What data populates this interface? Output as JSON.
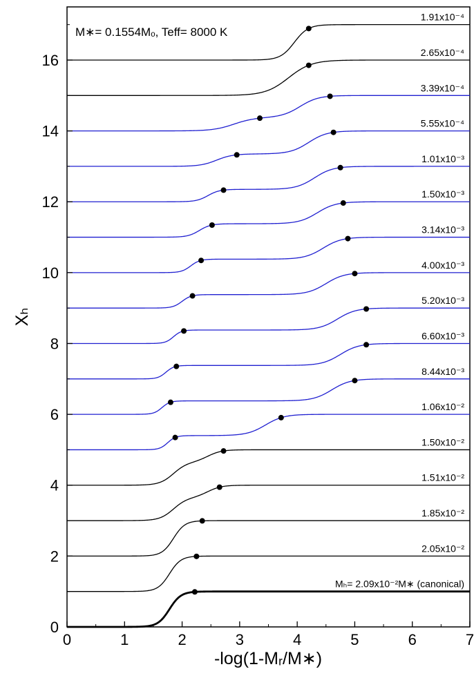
{
  "chart_data": {
    "type": "line",
    "xlabel": "-log(1-Mᵣ/M∗)",
    "ylabel": "Xₕ",
    "xlim": [
      0,
      7
    ],
    "ylim": [
      0,
      17.5
    ],
    "xticks": [
      0,
      1,
      2,
      3,
      4,
      5,
      6,
      7
    ],
    "yticks": [
      0,
      2,
      4,
      6,
      8,
      10,
      12,
      14,
      16
    ],
    "grid": false,
    "legend": "none",
    "annotation": "M∗= 0.1554Mₒ, Teff= 8000 K",
    "colors": {
      "black": "#000000",
      "blue": "#1f1fd0"
    },
    "series": [
      {
        "label": "1.91x10⁻⁴",
        "offset": 16,
        "color": "#000000",
        "steps": [
          {
            "x": 3.95,
            "h": 1.0,
            "w": 0.12
          }
        ],
        "markers": [
          4.2
        ]
      },
      {
        "label": "2.65x10⁻⁴",
        "offset": 15,
        "color": "#000000",
        "steps": [
          {
            "x": 3.85,
            "h": 1.0,
            "w": 0.2
          }
        ],
        "markers": [
          4.2
        ]
      },
      {
        "label": "3.39x10⁻⁴",
        "offset": 14,
        "color": "#1f1fd0",
        "steps": [
          {
            "x": 2.9,
            "h": 0.38,
            "w": 0.18
          },
          {
            "x": 4.05,
            "h": 0.62,
            "w": 0.16
          }
        ],
        "markers": [
          3.35,
          4.57
        ]
      },
      {
        "label": "5.55x10⁻⁴",
        "offset": 13,
        "color": "#1f1fd0",
        "steps": [
          {
            "x": 2.6,
            "h": 0.35,
            "w": 0.14
          },
          {
            "x": 4.2,
            "h": 0.65,
            "w": 0.16
          }
        ],
        "markers": [
          2.95,
          4.63
        ]
      },
      {
        "label": "1.01x10⁻³",
        "offset": 12,
        "color": "#1f1fd0",
        "steps": [
          {
            "x": 2.45,
            "h": 0.35,
            "w": 0.1
          },
          {
            "x": 4.3,
            "h": 0.65,
            "w": 0.16
          }
        ],
        "markers": [
          2.72,
          4.75
        ]
      },
      {
        "label": "1.50x10⁻³",
        "offset": 11,
        "color": "#1f1fd0",
        "steps": [
          {
            "x": 2.3,
            "h": 0.38,
            "w": 0.1
          },
          {
            "x": 4.35,
            "h": 0.62,
            "w": 0.16
          }
        ],
        "markers": [
          2.52,
          4.8
        ]
      },
      {
        "label": "3.14x10⁻³",
        "offset": 10,
        "color": "#1f1fd0",
        "steps": [
          {
            "x": 2.15,
            "h": 0.38,
            "w": 0.08
          },
          {
            "x": 4.45,
            "h": 0.62,
            "w": 0.16
          }
        ],
        "markers": [
          2.33,
          4.88
        ]
      },
      {
        "label": "4.00x10⁻³",
        "offset": 9,
        "color": "#1f1fd0",
        "steps": [
          {
            "x": 2.0,
            "h": 0.38,
            "w": 0.08
          },
          {
            "x": 4.5,
            "h": 0.62,
            "w": 0.16
          }
        ],
        "markers": [
          2.18,
          5.0
        ]
      },
      {
        "label": "5.20x10⁻³",
        "offset": 8,
        "color": "#1f1fd0",
        "steps": [
          {
            "x": 1.85,
            "h": 0.38,
            "w": 0.07
          },
          {
            "x": 4.7,
            "h": 0.62,
            "w": 0.16
          }
        ],
        "markers": [
          2.03,
          5.2
        ]
      },
      {
        "label": "6.60x10⁻³",
        "offset": 7,
        "color": "#1f1fd0",
        "steps": [
          {
            "x": 1.72,
            "h": 0.38,
            "w": 0.07
          },
          {
            "x": 4.75,
            "h": 0.62,
            "w": 0.16
          }
        ],
        "markers": [
          1.9,
          5.2
        ]
      },
      {
        "label": "8.44x10⁻³",
        "offset": 6,
        "color": "#1f1fd0",
        "steps": [
          {
            "x": 1.65,
            "h": 0.38,
            "w": 0.07
          },
          {
            "x": 4.6,
            "h": 0.62,
            "w": 0.16
          }
        ],
        "markers": [
          1.8,
          5.0
        ]
      },
      {
        "label": "1.06x10⁻²",
        "offset": 5,
        "color": "#1f1fd0",
        "steps": [
          {
            "x": 1.75,
            "h": 0.4,
            "w": 0.07
          },
          {
            "x": 3.45,
            "h": 0.6,
            "w": 0.16
          }
        ],
        "markers": [
          1.88,
          3.72
        ]
      },
      {
        "label": "1.50x10⁻²",
        "offset": 4,
        "color": "#000000",
        "steps": [
          {
            "x": 1.85,
            "h": 0.65,
            "w": 0.12
          },
          {
            "x": 2.45,
            "h": 0.35,
            "w": 0.12
          }
        ],
        "markers": [
          2.72
        ]
      },
      {
        "label": "1.51x10⁻²",
        "offset": 3,
        "color": "#000000",
        "steps": [
          {
            "x": 1.85,
            "h": 0.65,
            "w": 0.12
          },
          {
            "x": 2.45,
            "h": 0.35,
            "w": 0.12
          }
        ],
        "markers": [
          2.65
        ]
      },
      {
        "label": "1.85x10⁻²",
        "offset": 2,
        "color": "#000000",
        "steps": [
          {
            "x": 1.85,
            "h": 1.0,
            "w": 0.1
          }
        ],
        "markers": [
          2.35
        ]
      },
      {
        "label": "2.05x10⁻²",
        "offset": 1,
        "color": "#000000",
        "steps": [
          {
            "x": 1.78,
            "h": 1.0,
            "w": 0.1
          }
        ],
        "markers": [
          2.25
        ]
      },
      {
        "label": "Mₕ= 2.09x10⁻²M∗ (canonical)",
        "offset": 0,
        "color": "#000000",
        "thick": true,
        "steps": [
          {
            "x": 1.78,
            "h": 1.0,
            "w": 0.1
          }
        ],
        "markers": [
          2.22
        ]
      }
    ]
  }
}
